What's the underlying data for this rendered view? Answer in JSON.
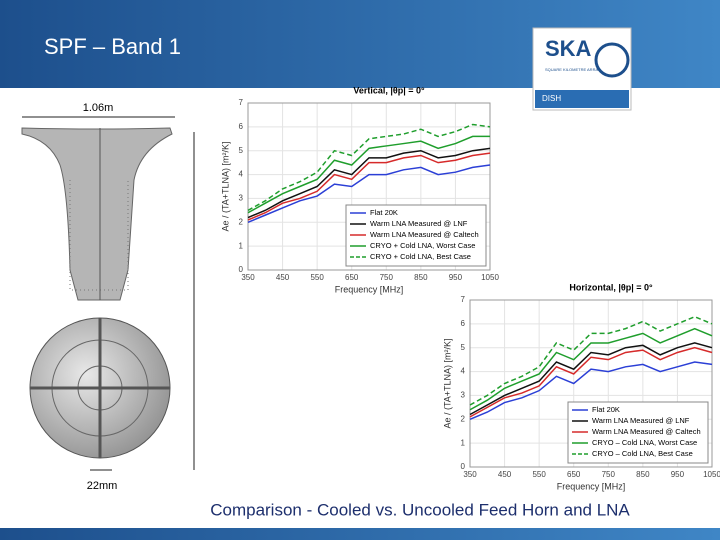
{
  "slide": {
    "title": "SPF – Band 1",
    "caption": "Comparison - Cooled vs. Uncooled Feed Horn and LNA",
    "height_label": "1.06m",
    "width_label": "22mm",
    "logo": {
      "name": "SKA",
      "tagline": "SQUARE KILOMETRE ARRAY",
      "unit": "DISH"
    }
  },
  "chart_data": [
    {
      "type": "line",
      "title": "Vertical,  |θp| = 0°",
      "x_label": "Frequency [MHz]",
      "y_label": "Ae / (TA+TLNA) [m²/K]",
      "x": [
        350,
        400,
        450,
        500,
        550,
        600,
        650,
        700,
        750,
        800,
        850,
        900,
        950,
        1000,
        1050
      ],
      "xlim": [
        350,
        1050
      ],
      "xticks": [
        350,
        450,
        550,
        650,
        750,
        850,
        950,
        1050
      ],
      "ylim": [
        0,
        7
      ],
      "yticks": [
        0,
        1,
        2,
        3,
        4,
        5,
        6,
        7
      ],
      "grid": true,
      "legend": "lower right",
      "series": [
        {
          "name": "Flat 20K",
          "color": "#2b3fd6",
          "linestyle": "solid",
          "values": [
            2.0,
            2.3,
            2.6,
            2.9,
            3.1,
            3.6,
            3.5,
            4.0,
            4.0,
            4.2,
            4.3,
            4.0,
            4.1,
            4.3,
            4.4
          ]
        },
        {
          "name": "Warm LNA Measured @ LNF",
          "color": "#111111",
          "linestyle": "solid",
          "values": [
            2.2,
            2.5,
            2.9,
            3.2,
            3.5,
            4.2,
            4.0,
            4.7,
            4.7,
            4.9,
            5.0,
            4.7,
            4.8,
            5.0,
            5.1
          ]
        },
        {
          "name": "Warm LNA Measured @ Caltech",
          "color": "#d62a2a",
          "linestyle": "solid",
          "values": [
            2.1,
            2.4,
            2.8,
            3.0,
            3.3,
            4.0,
            3.8,
            4.5,
            4.5,
            4.7,
            4.8,
            4.5,
            4.6,
            4.8,
            4.9
          ]
        },
        {
          "name": "CRYO + Cold LNA, Worst Case",
          "color": "#1f9e2c",
          "linestyle": "solid",
          "values": [
            2.4,
            2.8,
            3.2,
            3.5,
            3.8,
            4.6,
            4.4,
            5.1,
            5.2,
            5.3,
            5.4,
            5.1,
            5.3,
            5.6,
            5.6
          ]
        },
        {
          "name": "CRYO + Cold LNA, Best Case",
          "color": "#1f9e2c",
          "linestyle": "dashed",
          "values": [
            2.5,
            2.9,
            3.4,
            3.7,
            4.1,
            5.0,
            4.8,
            5.5,
            5.6,
            5.7,
            5.9,
            5.6,
            5.8,
            6.1,
            6.0
          ]
        }
      ]
    },
    {
      "type": "line",
      "title": "Horizontal,  |θp| = 0°",
      "x_label": "Frequency [MHz]",
      "y_label": "Ae / (TA+TLNA) [m²/K]",
      "x": [
        350,
        400,
        450,
        500,
        550,
        600,
        650,
        700,
        750,
        800,
        850,
        900,
        950,
        1000,
        1050
      ],
      "xlim": [
        350,
        1050
      ],
      "xticks": [
        350,
        450,
        550,
        650,
        750,
        850,
        950,
        1050
      ],
      "ylim": [
        0,
        7
      ],
      "yticks": [
        0,
        1,
        2,
        3,
        4,
        5,
        6,
        7
      ],
      "grid": true,
      "legend": "lower right",
      "series": [
        {
          "name": "Flat 20K",
          "color": "#2b3fd6",
          "linestyle": "solid",
          "values": [
            2.0,
            2.3,
            2.7,
            2.9,
            3.2,
            3.8,
            3.5,
            4.1,
            4.0,
            4.2,
            4.3,
            4.0,
            4.2,
            4.4,
            4.3
          ]
        },
        {
          "name": "Warm LNA Measured @ LNF",
          "color": "#111111",
          "linestyle": "solid",
          "values": [
            2.2,
            2.6,
            3.0,
            3.3,
            3.6,
            4.4,
            4.1,
            4.8,
            4.7,
            5.0,
            5.1,
            4.7,
            5.0,
            5.2,
            5.0
          ]
        },
        {
          "name": "Warm LNA Measured @ Caltech",
          "color": "#d62a2a",
          "linestyle": "solid",
          "values": [
            2.1,
            2.5,
            2.9,
            3.1,
            3.4,
            4.2,
            3.9,
            4.6,
            4.5,
            4.8,
            4.9,
            4.5,
            4.8,
            5.0,
            4.8
          ]
        },
        {
          "name": "CRYO – Cold LNA, Worst Case",
          "color": "#1f9e2c",
          "linestyle": "solid",
          "values": [
            2.4,
            2.8,
            3.3,
            3.6,
            3.9,
            4.8,
            4.5,
            5.2,
            5.2,
            5.4,
            5.6,
            5.2,
            5.5,
            5.8,
            5.5
          ]
        },
        {
          "name": "CRYO – Cold LNA, Best Case",
          "color": "#1f9e2c",
          "linestyle": "dashed",
          "values": [
            2.6,
            3.0,
            3.5,
            3.8,
            4.2,
            5.2,
            4.9,
            5.6,
            5.6,
            5.8,
            6.1,
            5.7,
            6.0,
            6.3,
            6.0
          ]
        }
      ]
    }
  ]
}
